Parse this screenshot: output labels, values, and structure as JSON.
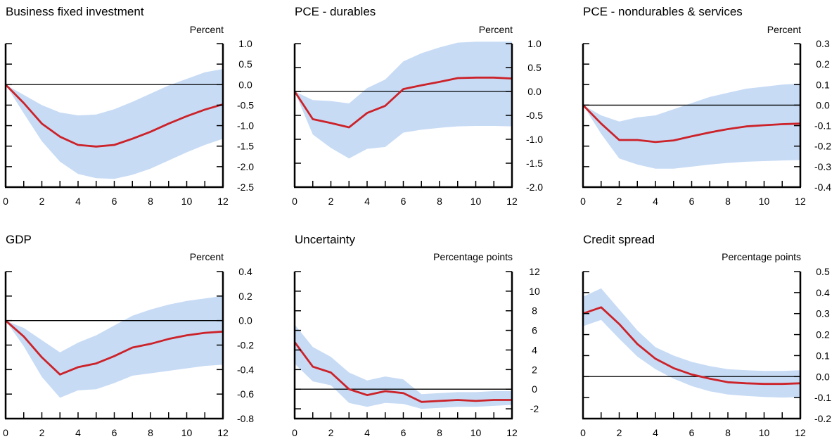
{
  "chart_data": [
    {
      "type": "line",
      "title": "Business fixed investment",
      "ylabel": "Percent",
      "x": [
        0,
        1,
        2,
        3,
        4,
        5,
        6,
        7,
        8,
        9,
        10,
        11,
        12
      ],
      "xticks": [
        0,
        2,
        4,
        6,
        8,
        10,
        12
      ],
      "xticklabels": [
        "0",
        "2",
        "4",
        "6",
        "8",
        "10",
        "12"
      ],
      "ylim": [
        -2.5,
        1.0
      ],
      "yticks": [
        1.0,
        0.5,
        0.0,
        -0.5,
        -1.0,
        -1.5,
        -2.0,
        -2.5
      ],
      "yticklabels": [
        "1.0",
        "0.5",
        "0.0",
        "-0.5",
        "-1.0",
        "-1.5",
        "-2.0",
        "-2.5"
      ],
      "zero_line": 0,
      "series": [
        {
          "role": "estimate",
          "values": [
            0,
            -0.45,
            -0.95,
            -1.27,
            -1.47,
            -1.51,
            -1.47,
            -1.32,
            -1.15,
            -0.95,
            -0.77,
            -0.61,
            -0.48
          ]
        },
        {
          "role": "band_upper",
          "values": [
            0,
            -0.25,
            -0.5,
            -0.68,
            -0.75,
            -0.73,
            -0.6,
            -0.42,
            -0.22,
            -0.02,
            0.14,
            0.3,
            0.38
          ]
        },
        {
          "role": "band_lower",
          "values": [
            0,
            -0.7,
            -1.38,
            -1.88,
            -2.18,
            -2.28,
            -2.3,
            -2.2,
            -2.05,
            -1.85,
            -1.65,
            -1.47,
            -1.32
          ]
        }
      ],
      "colors": {
        "line": "#cc2229",
        "band": "#c7dbf5"
      }
    },
    {
      "type": "line",
      "title": "PCE - durables",
      "ylabel": "Percent",
      "x": [
        0,
        1,
        2,
        3,
        4,
        5,
        6,
        7,
        8,
        9,
        10,
        11,
        12
      ],
      "xticks": [
        0,
        2,
        4,
        6,
        8,
        10,
        12
      ],
      "xticklabels": [
        "0",
        "2",
        "4",
        "6",
        "8",
        "10",
        "12"
      ],
      "ylim": [
        -2.0,
        1.0
      ],
      "yticks": [
        1.0,
        0.5,
        0.0,
        -0.5,
        -1.0,
        -1.5,
        -2.0
      ],
      "yticklabels": [
        "1.0",
        "0.5",
        "0.0",
        "-0.5",
        "-1.0",
        "-1.5",
        "-2.0"
      ],
      "zero_line": 0,
      "series": [
        {
          "role": "estimate",
          "values": [
            0,
            -0.58,
            -0.66,
            -0.75,
            -0.45,
            -0.3,
            0.05,
            0.13,
            0.2,
            0.28,
            0.29,
            0.29,
            0.27
          ]
        },
        {
          "role": "band_upper",
          "values": [
            0,
            -0.18,
            -0.2,
            -0.25,
            0.07,
            0.25,
            0.63,
            0.8,
            0.92,
            1.02,
            1.04,
            1.04,
            1.04
          ]
        },
        {
          "role": "band_lower",
          "values": [
            0,
            -0.9,
            -1.18,
            -1.4,
            -1.2,
            -1.16,
            -0.86,
            -0.8,
            -0.76,
            -0.73,
            -0.72,
            -0.72,
            -0.73
          ]
        }
      ],
      "colors": {
        "line": "#cc2229",
        "band": "#c7dbf5"
      }
    },
    {
      "type": "line",
      "title": "PCE - nondurables & services",
      "ylabel": "Percent",
      "x": [
        0,
        1,
        2,
        3,
        4,
        5,
        6,
        7,
        8,
        9,
        10,
        11,
        12
      ],
      "xticks": [
        0,
        2,
        4,
        6,
        8,
        10,
        12
      ],
      "xticklabels": [
        "0",
        "2",
        "4",
        "6",
        "8",
        "10",
        "12"
      ],
      "ylim": [
        -0.4,
        0.3
      ],
      "yticks": [
        0.3,
        0.2,
        0.1,
        0.0,
        -0.1,
        -0.2,
        -0.3,
        -0.4
      ],
      "yticklabels": [
        "0.3",
        "0.2",
        "0.1",
        "0.0",
        "-0.1",
        "-0.2",
        "-0.3",
        "-0.4"
      ],
      "zero_line": 0,
      "series": [
        {
          "role": "estimate",
          "values": [
            0,
            -0.09,
            -0.17,
            -0.17,
            -0.18,
            -0.172,
            -0.152,
            -0.133,
            -0.117,
            -0.104,
            -0.098,
            -0.093,
            -0.09
          ]
        },
        {
          "role": "band_upper",
          "values": [
            0,
            -0.05,
            -0.08,
            -0.06,
            -0.05,
            -0.02,
            0.01,
            0.04,
            0.06,
            0.08,
            0.09,
            0.1,
            0.105
          ]
        },
        {
          "role": "band_lower",
          "values": [
            0,
            -0.14,
            -0.26,
            -0.29,
            -0.31,
            -0.31,
            -0.3,
            -0.29,
            -0.282,
            -0.276,
            -0.273,
            -0.27,
            -0.268
          ]
        }
      ],
      "colors": {
        "line": "#cc2229",
        "band": "#c7dbf5"
      }
    },
    {
      "type": "line",
      "title": "GDP",
      "ylabel": "Percent",
      "x": [
        0,
        1,
        2,
        3,
        4,
        5,
        6,
        7,
        8,
        9,
        10,
        11,
        12
      ],
      "xticks": [
        0,
        2,
        4,
        6,
        8,
        10,
        12
      ],
      "xticklabels": [
        "0",
        "2",
        "4",
        "6",
        "8",
        "10",
        "12"
      ],
      "ylim": [
        -0.8,
        0.4
      ],
      "yticks": [
        0.4,
        0.2,
        0.0,
        -0.2,
        -0.4,
        -0.6,
        -0.8
      ],
      "yticklabels": [
        "0.4",
        "0.2",
        "0.0",
        "-0.2",
        "-0.4",
        "-0.6",
        "-0.8"
      ],
      "zero_line": 0,
      "series": [
        {
          "role": "estimate",
          "values": [
            0,
            -0.13,
            -0.3,
            -0.44,
            -0.38,
            -0.35,
            -0.29,
            -0.22,
            -0.19,
            -0.15,
            -0.12,
            -0.1,
            -0.09
          ]
        },
        {
          "role": "band_upper",
          "values": [
            0,
            -0.06,
            -0.16,
            -0.26,
            -0.18,
            -0.12,
            -0.04,
            0.04,
            0.09,
            0.13,
            0.16,
            0.18,
            0.2
          ]
        },
        {
          "role": "band_lower",
          "values": [
            0,
            -0.21,
            -0.46,
            -0.63,
            -0.57,
            -0.56,
            -0.51,
            -0.45,
            -0.43,
            -0.41,
            -0.39,
            -0.37,
            -0.36
          ]
        }
      ],
      "colors": {
        "line": "#cc2229",
        "band": "#c7dbf5"
      }
    },
    {
      "type": "line",
      "title": "Uncertainty",
      "ylabel": "Percentage points",
      "x": [
        0,
        1,
        2,
        3,
        4,
        5,
        6,
        7,
        8,
        9,
        10,
        11,
        12
      ],
      "xticks": [
        0,
        2,
        4,
        6,
        8,
        10,
        12
      ],
      "xticklabels": [
        "0",
        "2",
        "4",
        "6",
        "8",
        "10",
        "12"
      ],
      "ylim": [
        -3,
        12
      ],
      "yticks": [
        12,
        10,
        8,
        6,
        4,
        2,
        0,
        -2
      ],
      "yticklabels": [
        "12",
        "10",
        "8",
        "6",
        "4",
        "2",
        "0",
        "-2"
      ],
      "zero_line": 0,
      "series": [
        {
          "role": "estimate",
          "values": [
            4.8,
            2.3,
            1.7,
            0,
            -0.6,
            -0.2,
            -0.4,
            -1.3,
            -1.2,
            -1.1,
            -1.2,
            -1.1,
            -1.1
          ]
        },
        {
          "role": "band_upper",
          "values": [
            6.6,
            4.3,
            3.3,
            1.7,
            0.9,
            1.3,
            1.0,
            -0.5,
            -0.4,
            -0.3,
            -0.3,
            -0.2,
            -0.2
          ]
        },
        {
          "role": "band_lower",
          "values": [
            2.6,
            0.8,
            0.4,
            -1.4,
            -1.8,
            -1.4,
            -1.5,
            -2.0,
            -1.9,
            -1.8,
            -1.8,
            -1.7,
            -1.6
          ]
        }
      ],
      "colors": {
        "line": "#cc2229",
        "band": "#c7dbf5"
      }
    },
    {
      "type": "line",
      "title": "Credit spread",
      "ylabel": "Percentage points",
      "x": [
        0,
        1,
        2,
        3,
        4,
        5,
        6,
        7,
        8,
        9,
        10,
        11,
        12
      ],
      "xticks": [
        0,
        2,
        4,
        6,
        8,
        10,
        12
      ],
      "xticklabels": [
        "0",
        "2",
        "4",
        "6",
        "8",
        "10",
        "12"
      ],
      "ylim": [
        -0.2,
        0.5
      ],
      "yticks": [
        0.5,
        0.4,
        0.3,
        0.2,
        0.1,
        0.0,
        -0.1,
        -0.2
      ],
      "yticklabels": [
        "0.5",
        "0.4",
        "0.3",
        "0.2",
        "0.1",
        "0.0",
        "-0.1",
        "-0.2"
      ],
      "zero_line": 0,
      "series": [
        {
          "role": "estimate",
          "values": [
            0.3,
            0.33,
            0.25,
            0.155,
            0.085,
            0.04,
            0.01,
            -0.01,
            -0.027,
            -0.032,
            -0.035,
            -0.035,
            -0.032
          ]
        },
        {
          "role": "band_upper",
          "values": [
            0.38,
            0.42,
            0.32,
            0.22,
            0.14,
            0.1,
            0.07,
            0.05,
            0.035,
            0.03,
            0.027,
            0.027,
            0.03
          ]
        },
        {
          "role": "band_lower",
          "values": [
            0.24,
            0.27,
            0.18,
            0.095,
            0.035,
            -0.01,
            -0.045,
            -0.07,
            -0.085,
            -0.092,
            -0.097,
            -0.1,
            -0.098
          ]
        }
      ],
      "colors": {
        "line": "#cc2229",
        "band": "#c7dbf5"
      }
    }
  ]
}
